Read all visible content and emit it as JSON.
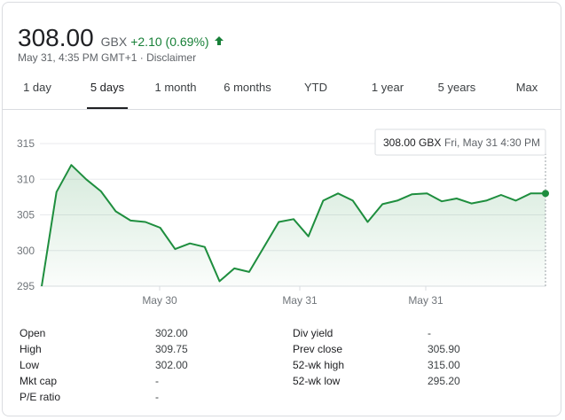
{
  "quote": {
    "price": "308.00",
    "currency": "GBX",
    "change": "+2.10 (0.69%)",
    "change_direction": "up",
    "timestamp": "May 31, 4:35 PM GMT+1",
    "separator": " · ",
    "disclaimer": "Disclaimer"
  },
  "colors": {
    "up": "#188038",
    "line": "#1e8e3e"
  },
  "tabs": [
    {
      "label": "1 day",
      "active": false
    },
    {
      "label": "5 days",
      "active": true
    },
    {
      "label": "1 month",
      "active": false
    },
    {
      "label": "6 months",
      "active": false
    },
    {
      "label": "YTD",
      "active": false
    },
    {
      "label": "1 year",
      "active": false
    },
    {
      "label": "5 years",
      "active": false
    },
    {
      "label": "Max",
      "active": false
    }
  ],
  "chart_data": {
    "type": "line",
    "y_ticks": [
      "315",
      "310",
      "305",
      "300",
      "295"
    ],
    "x_tick_labels": [
      "May 30",
      "May 31",
      "May 31"
    ],
    "ylim": [
      295,
      315
    ],
    "grid": true,
    "series": [
      {
        "values": [
          295,
          308.2,
          312,
          310,
          308.3,
          305.5,
          304.2,
          304,
          303.2,
          300.2,
          301,
          300.5,
          295.7,
          297.5,
          297,
          300.5,
          304,
          304.4,
          302,
          307,
          308,
          307,
          304,
          306.5,
          307,
          307.9,
          308,
          306.9,
          307.3,
          306.6,
          307,
          307.8,
          307,
          308,
          308
        ]
      }
    ],
    "tooltip": {
      "price": "308.00 GBX",
      "time": "Fri, May 31 4:30 PM"
    }
  },
  "stats": {
    "left": [
      {
        "label": "Open",
        "value": "302.00"
      },
      {
        "label": "High",
        "value": "309.75"
      },
      {
        "label": "Low",
        "value": "302.00"
      },
      {
        "label": "Mkt cap",
        "value": "-"
      },
      {
        "label": "P/E ratio",
        "value": "-"
      }
    ],
    "right": [
      {
        "label": "Div yield",
        "value": "-"
      },
      {
        "label": "Prev close",
        "value": "305.90"
      },
      {
        "label": "52-wk high",
        "value": "315.00"
      },
      {
        "label": "52-wk low",
        "value": "295.20"
      }
    ]
  }
}
